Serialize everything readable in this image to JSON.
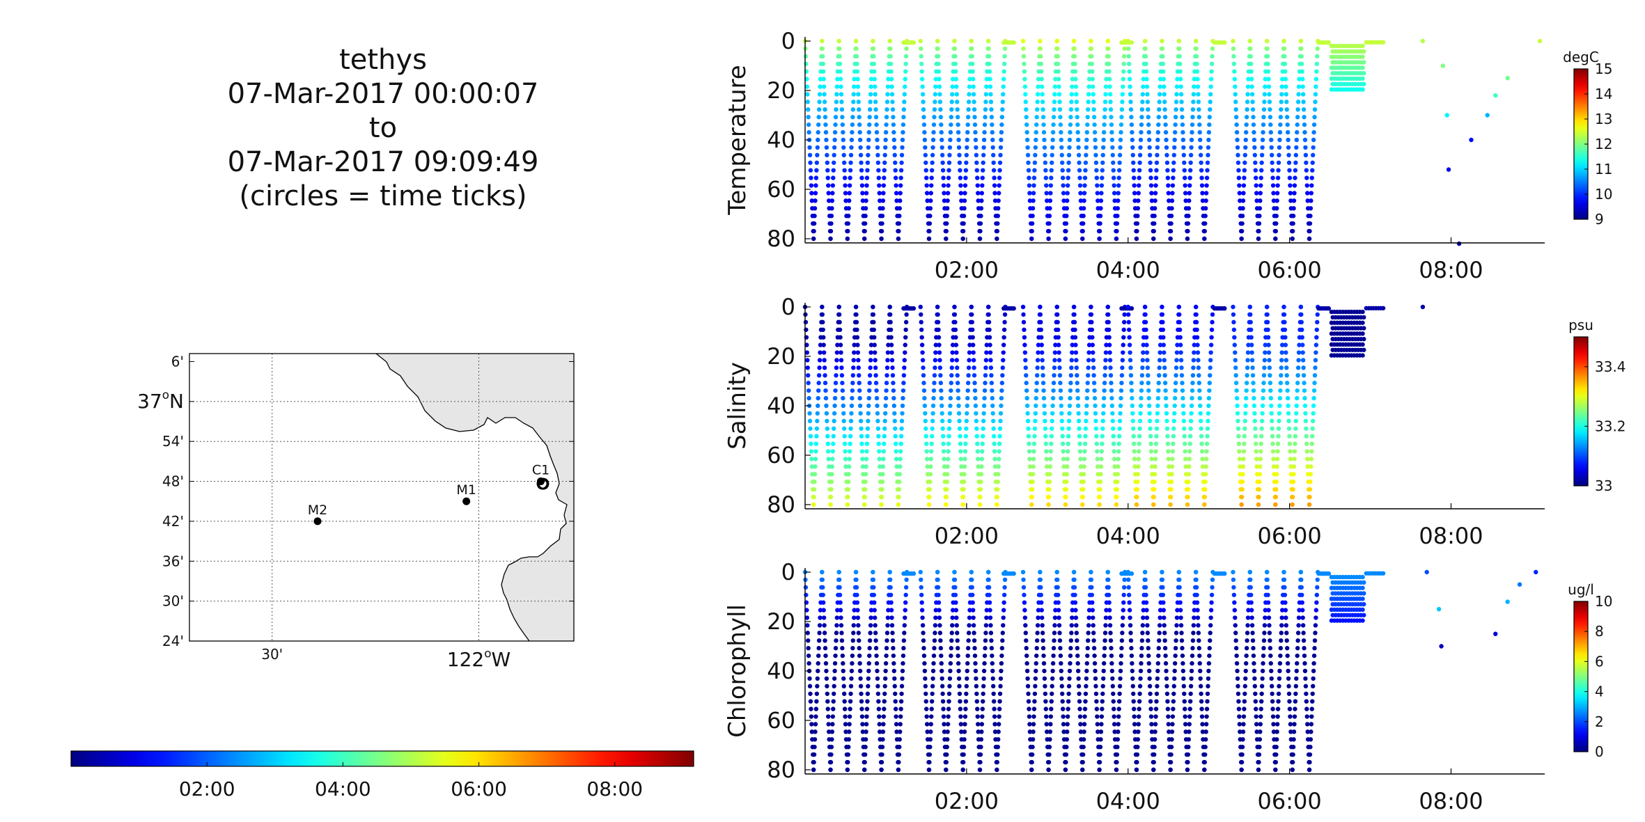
{
  "title_block": {
    "platform": "tethys",
    "start": "07-Mar-2017 00:00:07",
    "to": "to",
    "end": "07-Mar-2017 09:09:49",
    "note": "(circles = time ticks)"
  },
  "map": {
    "lat_labels": [
      "6'",
      "37°N",
      "54'",
      "48'",
      "42'",
      "36'",
      "30'",
      "24'"
    ],
    "lon_labels": [
      "30'",
      "122°W"
    ],
    "stations": [
      {
        "name": "M2",
        "lon": -122.39,
        "lat": 36.7
      },
      {
        "name": "M1",
        "lon": -122.03,
        "lat": 36.75
      },
      {
        "name": "C1",
        "lon": -121.85,
        "lat": 36.8
      }
    ]
  },
  "time_colorbar": {
    "ticks": [
      "02:00",
      "04:00",
      "06:00",
      "08:00"
    ],
    "colormap": "jet"
  },
  "chart_data": [
    {
      "type": "scatter",
      "ylabel": "Temperature",
      "unit": "degC",
      "ylim": [
        80,
        0
      ],
      "xlim_hours": [
        0,
        9.16
      ],
      "x_ticks": [
        "02:00",
        "04:00",
        "06:00",
        "08:00"
      ],
      "y_ticks": [
        "0",
        "20",
        "40",
        "60",
        "80"
      ],
      "colorbar_range": [
        9,
        15
      ],
      "colorbar_ticks": [
        "15",
        "14",
        "13",
        "12",
        "11",
        "10",
        "9"
      ],
      "profile_pattern": {
        "surface": 12.4,
        "bottom": 9.2,
        "profile_max_depth_m": 80
      },
      "late_points": [
        {
          "time_h": 7.65,
          "depth_m": 0,
          "value": 12.3
        },
        {
          "time_h": 7.9,
          "depth_m": 10,
          "value": 12.0
        },
        {
          "time_h": 7.95,
          "depth_m": 30,
          "value": 11.2
        },
        {
          "time_h": 7.97,
          "depth_m": 52,
          "value": 9.6
        },
        {
          "time_h": 8.25,
          "depth_m": 40,
          "value": 9.8
        },
        {
          "time_h": 8.45,
          "depth_m": 30,
          "value": 10.8
        },
        {
          "time_h": 8.55,
          "depth_m": 22,
          "value": 11.6
        },
        {
          "time_h": 8.7,
          "depth_m": 15,
          "value": 11.9
        },
        {
          "time_h": 8.1,
          "depth_m": 82,
          "value": 9.2
        },
        {
          "time_h": 9.1,
          "depth_m": 0,
          "value": 12.4
        }
      ]
    },
    {
      "type": "scatter",
      "ylabel": "Salinity",
      "unit": "psu",
      "ylim": [
        80,
        0
      ],
      "xlim_hours": [
        0,
        9.16
      ],
      "x_ticks": [
        "02:00",
        "04:00",
        "06:00",
        "08:00"
      ],
      "y_ticks": [
        "0",
        "20",
        "40",
        "60",
        "80"
      ],
      "colorbar_range": [
        33.0,
        33.5
      ],
      "colorbar_ticks": [
        "33.4",
        "33.2",
        "33"
      ],
      "profile_pattern": {
        "surface": 33.02,
        "bottom": 33.3,
        "profile_max_depth_m": 80
      },
      "late_points": [
        {
          "time_h": 7.65,
          "depth_m": 0,
          "value": 33.02
        }
      ]
    },
    {
      "type": "scatter",
      "ylabel": "Chlorophyll",
      "unit": "ug/l",
      "ylim": [
        80,
        0
      ],
      "xlim_hours": [
        0,
        9.16
      ],
      "x_ticks": [
        "02:00",
        "04:00",
        "06:00",
        "08:00"
      ],
      "y_ticks": [
        "0",
        "20",
        "40",
        "60",
        "80"
      ],
      "colorbar_range": [
        0,
        10
      ],
      "colorbar_ticks": [
        "10",
        "8",
        "6",
        "4",
        "2",
        "0"
      ],
      "profile_pattern": {
        "surface": 2.6,
        "bottom": 0.2,
        "profile_max_depth_m": 80
      },
      "late_points": [
        {
          "time_h": 7.7,
          "depth_m": 0,
          "value": 2.0
        },
        {
          "time_h": 7.85,
          "depth_m": 15,
          "value": 3.2
        },
        {
          "time_h": 7.88,
          "depth_m": 30,
          "value": 0.6
        },
        {
          "time_h": 8.55,
          "depth_m": 25,
          "value": 0.8
        },
        {
          "time_h": 8.7,
          "depth_m": 12,
          "value": 3.0
        },
        {
          "time_h": 8.85,
          "depth_m": 5,
          "value": 2.4
        },
        {
          "time_h": 9.05,
          "depth_m": 0,
          "value": 1.6
        }
      ]
    }
  ]
}
